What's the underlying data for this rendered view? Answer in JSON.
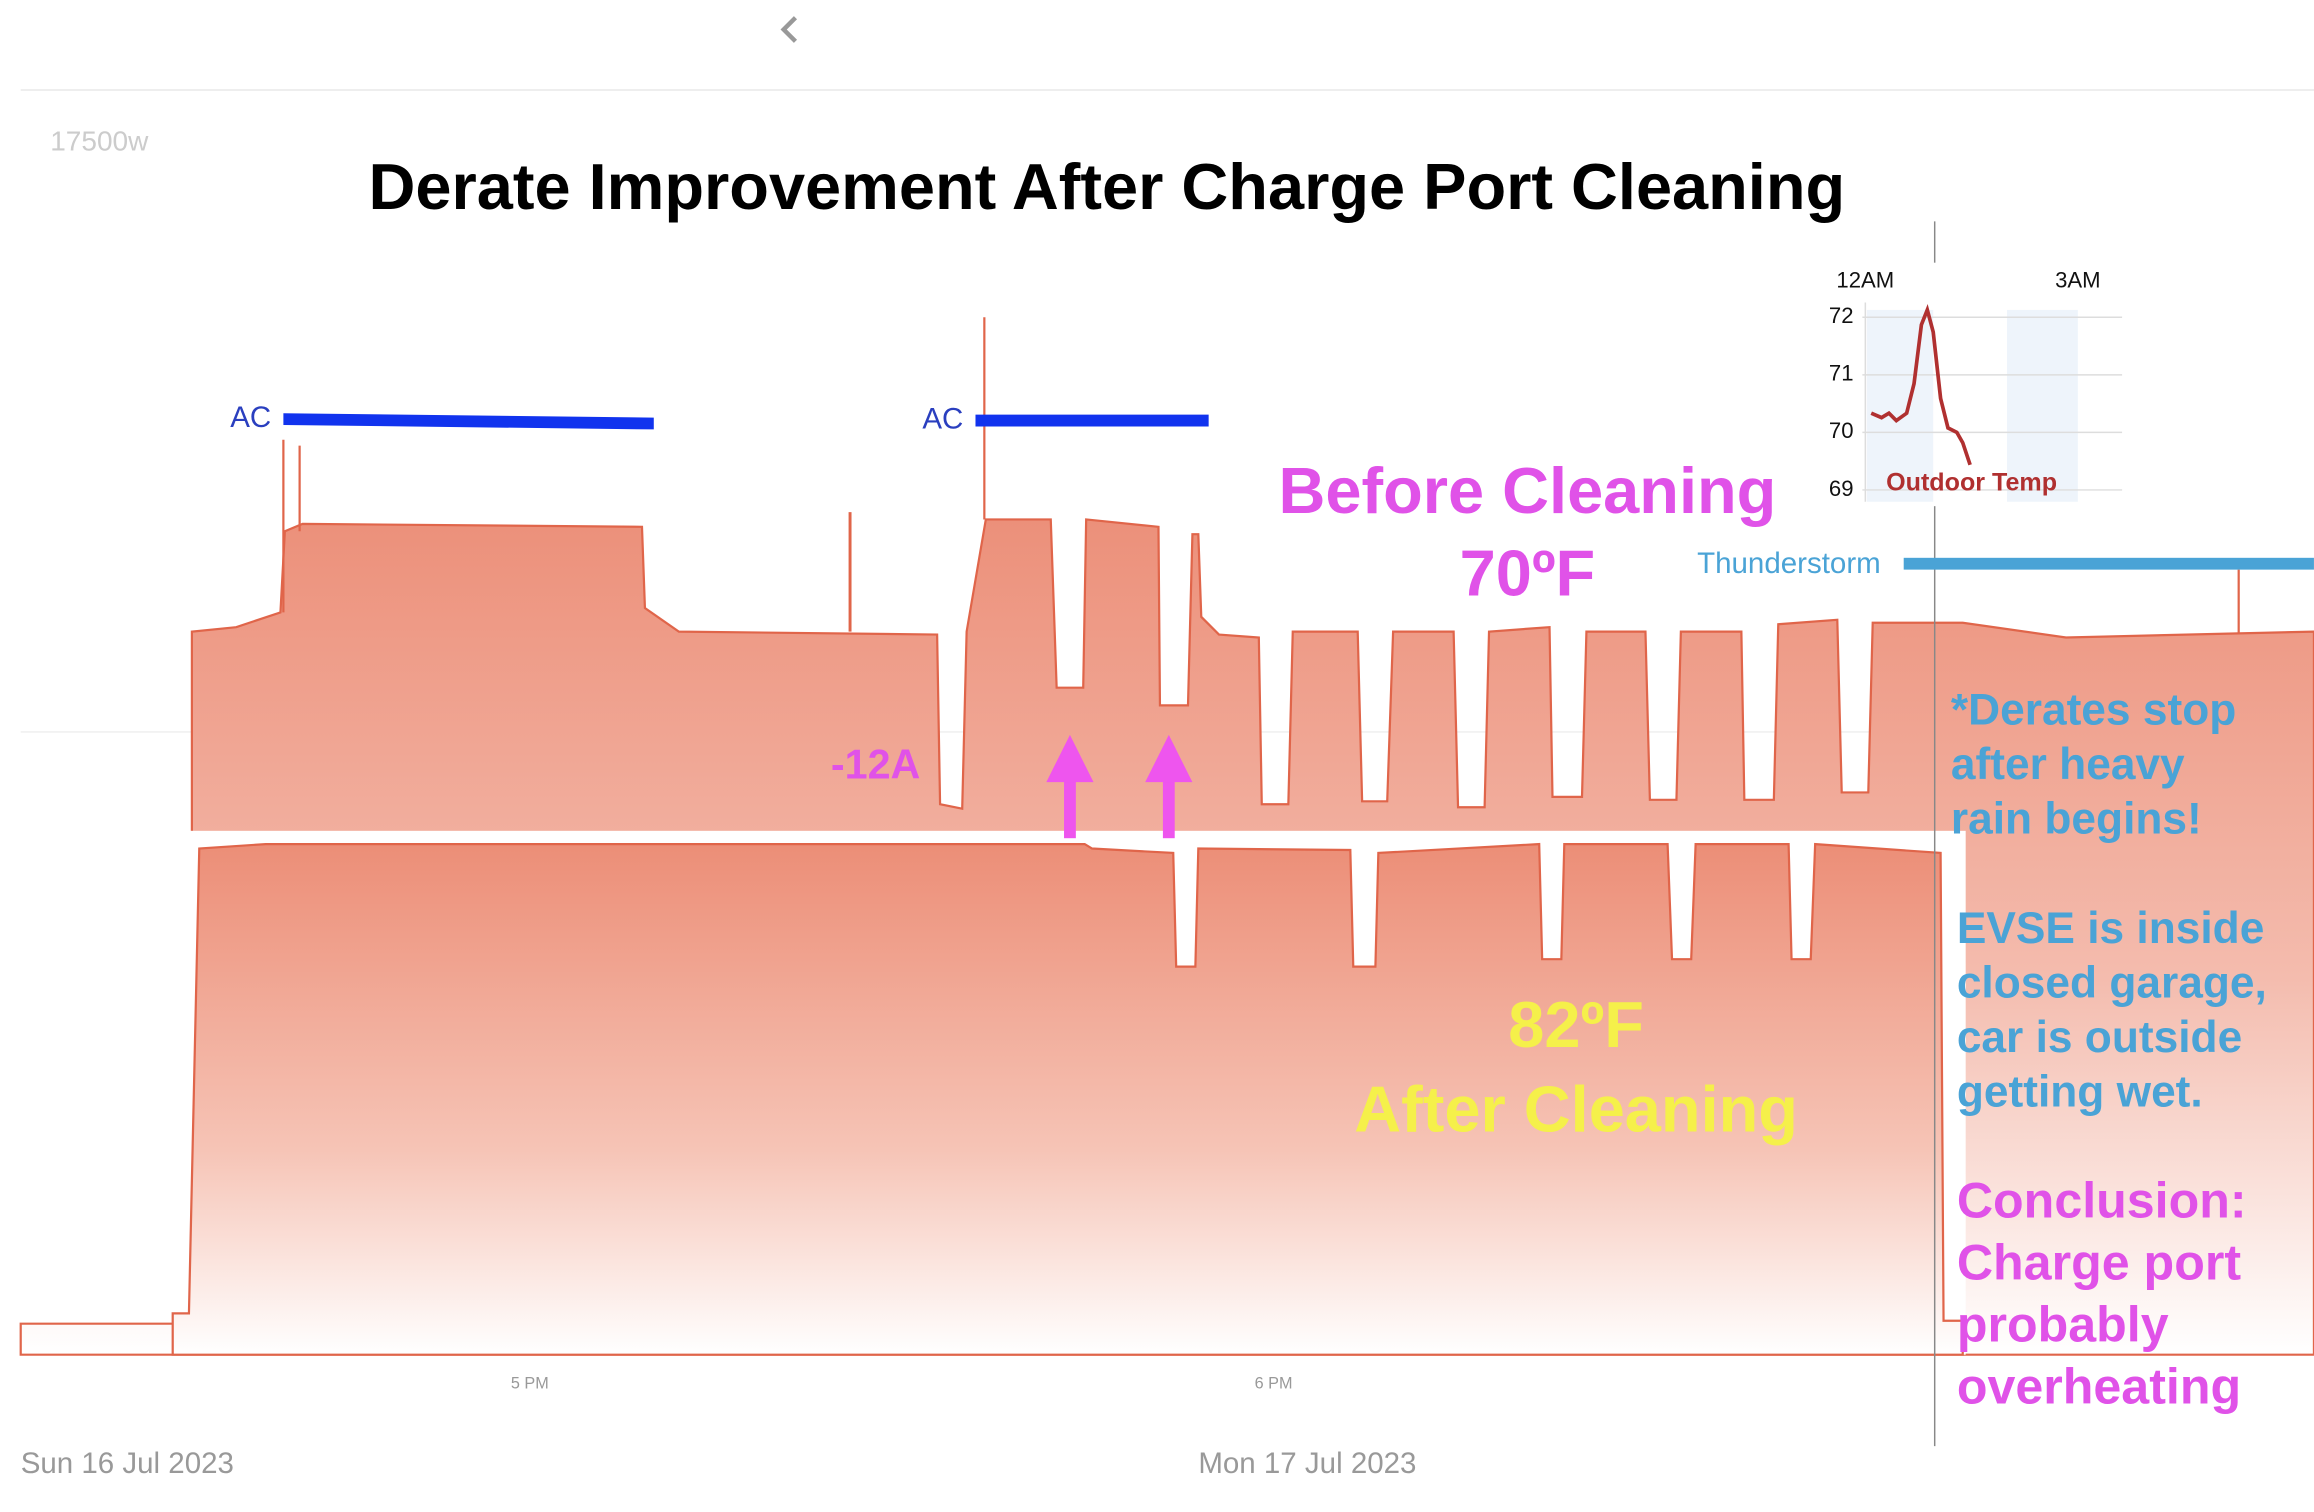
{
  "header": {
    "y_label": "17500w",
    "title": "Derate Improvement After Charge Port Cleaning"
  },
  "annotations": {
    "ac_1": "AC",
    "ac_2": "AC",
    "before": [
      "Before Cleaning",
      "70ºF"
    ],
    "thunderstorm": "Thunderstorm",
    "drop": "-12A",
    "after": [
      "82ºF",
      "After Cleaning"
    ],
    "note_rain": [
      "*Derates stop",
      "after heavy",
      "rain begins!"
    ],
    "note_evse": [
      "EVSE is inside",
      "closed garage,",
      "car is outside",
      "getting wet."
    ],
    "conclusion": [
      "Conclusion:",
      "Charge port",
      "probably",
      "overheating"
    ]
  },
  "inset": {
    "x_labels": [
      "12AM",
      "3AM"
    ],
    "y_labels": [
      "72",
      "71",
      "70",
      "69"
    ],
    "label": "Outdoor Temp"
  },
  "x_axis": {
    "ticks": [
      "5 PM",
      "6 PM"
    ],
    "dates": [
      "Sun 16 Jul 2023",
      "Mon 17 Jul 2023"
    ]
  }
}
